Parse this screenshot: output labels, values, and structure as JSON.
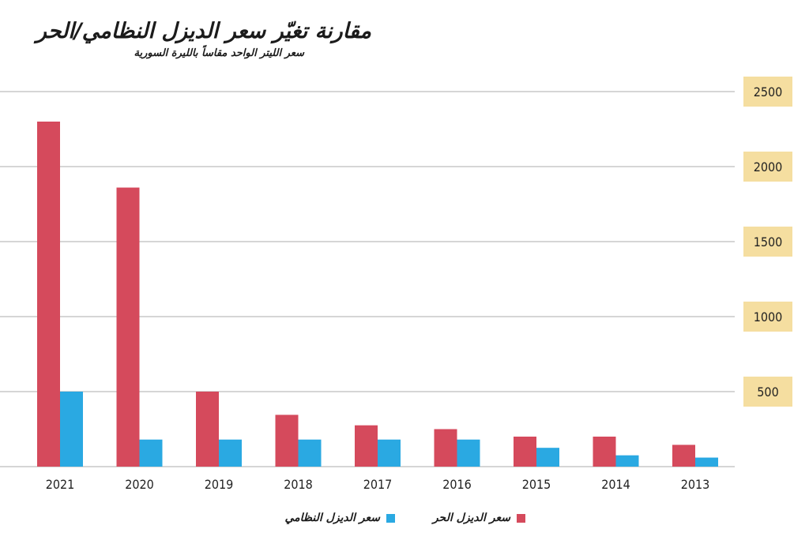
{
  "title": "مقارنة تغيّر سعر الديزل النظامي/الحر",
  "subtitle": "سعر الليتر الواحد مقاساً بالليرة السورية",
  "colors": {
    "free": "#d54a5c",
    "regulated": "#2aa9e2",
    "tick_box": "#f5dea0",
    "grid": "#d6d6d6"
  },
  "chart_data": {
    "type": "bar",
    "categories": [
      "2021",
      "2020",
      "2019",
      "2018",
      "2017",
      "2016",
      "2015",
      "2014",
      "2013"
    ],
    "series": [
      {
        "name": "سعر الديزل الحر",
        "color": "#d54a5c",
        "values": [
          2300,
          1860,
          500,
          345,
          275,
          250,
          200,
          200,
          145
        ]
      },
      {
        "name": "سعر الديزل النظامي",
        "color": "#2aa9e2",
        "values": [
          500,
          180,
          180,
          180,
          180,
          180,
          125,
          75,
          60
        ]
      }
    ],
    "ylim": [
      0,
      2500
    ],
    "y_ticks": [
      "500",
      "1000",
      "1500",
      "2000",
      "2500"
    ],
    "y_tick_values": [
      500,
      1000,
      1500,
      2000,
      2500
    ],
    "grid": true,
    "legend_position": "bottom-center",
    "axis_side": "right",
    "x_order": "descending-left-to-right"
  }
}
